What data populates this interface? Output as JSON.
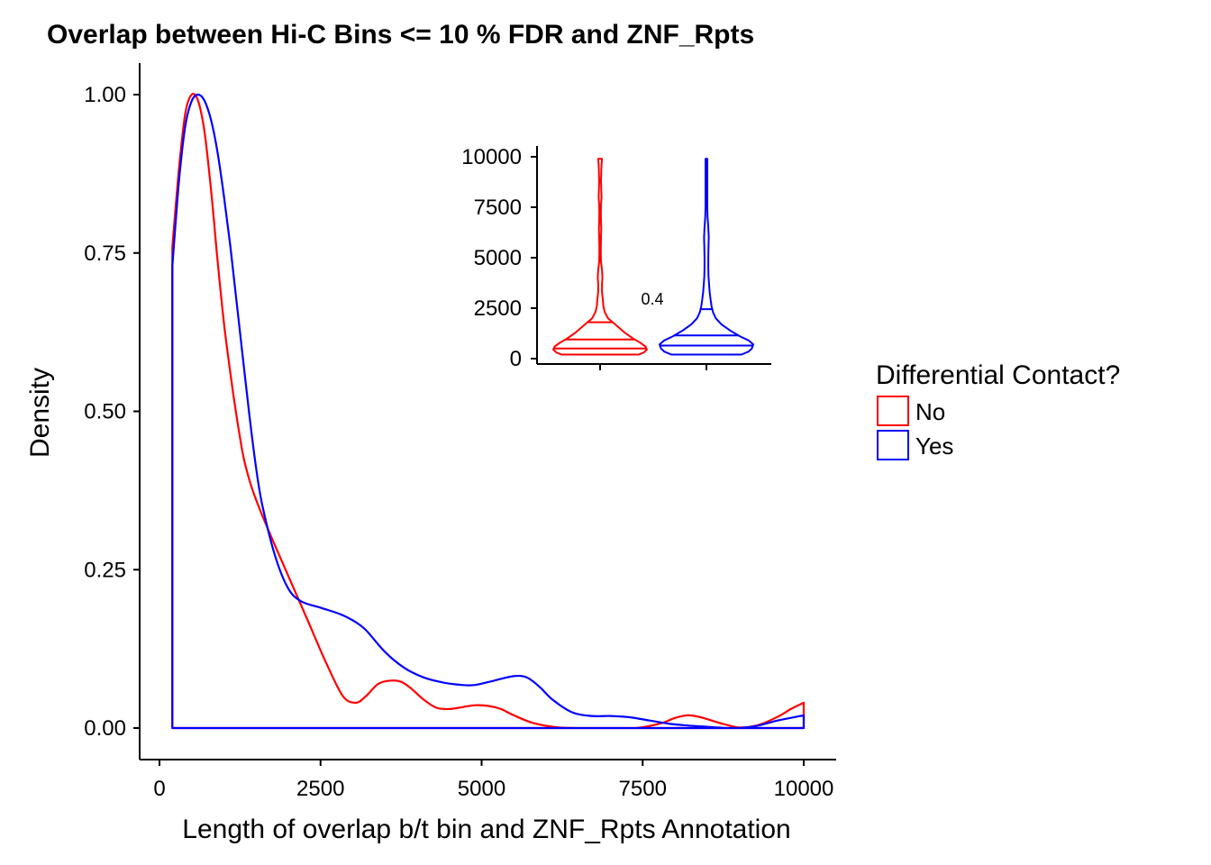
{
  "chart_data": [
    {
      "type": "area",
      "title": "Overlap between Hi-C Bins <= 10 % FDR and ZNF_Rpts",
      "xlabel": "Length of overlap b/t bin and ZNF_Rpts Annotation",
      "ylabel": "Density",
      "xlim": [
        0,
        10000
      ],
      "ylim": [
        0,
        1.0
      ],
      "x_ticks": [
        "0",
        "2500",
        "5000",
        "7500",
        "10000"
      ],
      "y_ticks": [
        "0.00",
        "0.25",
        "0.50",
        "0.75",
        "1.00"
      ],
      "grid": false,
      "legend": {
        "title": "Differential Contact?",
        "placement": "right",
        "entries": [
          "No",
          "Yes"
        ]
      },
      "series": [
        {
          "name": "No",
          "color": "#ff0000",
          "x": [
            200,
            300,
            400,
            500,
            600,
            700,
            800,
            900,
            1000,
            1100,
            1200,
            1300,
            1400,
            1500,
            1700,
            2000,
            2300,
            2600,
            2850,
            3050,
            3200,
            3400,
            3600,
            3750,
            3900,
            4100,
            4300,
            4500,
            4700,
            4900,
            5100,
            5300,
            5500,
            5800,
            6200,
            6600,
            7000,
            7400,
            7800,
            8000,
            8200,
            8400,
            8700,
            9000,
            9300,
            9600,
            9800,
            10000
          ],
          "y": [
            0.76,
            0.88,
            0.97,
            1.0,
            0.99,
            0.94,
            0.85,
            0.74,
            0.64,
            0.56,
            0.49,
            0.43,
            0.39,
            0.36,
            0.31,
            0.24,
            0.17,
            0.1,
            0.05,
            0.04,
            0.05,
            0.07,
            0.075,
            0.073,
            0.063,
            0.045,
            0.032,
            0.03,
            0.033,
            0.036,
            0.035,
            0.03,
            0.02,
            0.008,
            0.001,
            0.0,
            0.0,
            0.0,
            0.008,
            0.016,
            0.02,
            0.017,
            0.008,
            0.001,
            0.005,
            0.018,
            0.03,
            0.04
          ]
        },
        {
          "name": "Yes",
          "color": "#0000ff",
          "x": [
            200,
            300,
            400,
            500,
            600,
            700,
            800,
            900,
            1000,
            1100,
            1200,
            1300,
            1400,
            1500,
            1600,
            1800,
            2000,
            2200,
            2500,
            2800,
            3000,
            3200,
            3500,
            3800,
            4100,
            4400,
            4700,
            4900,
            5200,
            5500,
            5700,
            5900,
            6100,
            6400,
            6700,
            7000,
            7300,
            7600,
            7900,
            8200,
            8500,
            8800,
            9000,
            9300,
            9600,
            10000
          ],
          "y": [
            0.73,
            0.86,
            0.95,
            0.99,
            1.0,
            0.99,
            0.96,
            0.91,
            0.84,
            0.76,
            0.67,
            0.58,
            0.49,
            0.41,
            0.35,
            0.27,
            0.22,
            0.2,
            0.19,
            0.18,
            0.17,
            0.155,
            0.12,
            0.095,
            0.08,
            0.072,
            0.068,
            0.068,
            0.075,
            0.082,
            0.08,
            0.065,
            0.045,
            0.025,
            0.019,
            0.019,
            0.017,
            0.012,
            0.007,
            0.004,
            0.002,
            0.0,
            0.0,
            0.004,
            0.012,
            0.02
          ]
        }
      ]
    },
    {
      "type": "violin",
      "ylim": [
        0,
        10000
      ],
      "y_ticks": [
        "0",
        "2500",
        "5000",
        "7500",
        "10000"
      ],
      "annotation": "0.4",
      "series": [
        {
          "name": "No",
          "color": "#ff0000",
          "profile_y": [
            200,
            300,
            450,
            600,
            800,
            1000,
            1300,
            1700,
            2000,
            2300,
            2600,
            2900,
            3300,
            3700,
            4000,
            4400,
            4800,
            5200,
            5600,
            6000,
            6400,
            6800,
            7200,
            7600,
            8000,
            8400,
            8800,
            9200,
            9600,
            9900
          ],
          "profile_w": [
            0.82,
            0.93,
            1.0,
            0.97,
            0.85,
            0.7,
            0.52,
            0.32,
            0.17,
            0.1,
            0.07,
            0.06,
            0.04,
            0.04,
            0.05,
            0.04,
            0.02,
            0.015,
            0.015,
            0.02,
            0.025,
            0.02,
            0.015,
            0.02,
            0.03,
            0.025,
            0.02,
            0.025,
            0.03,
            0.04
          ],
          "quantiles": [
            500,
            950,
            1800
          ]
        },
        {
          "name": "Yes",
          "color": "#0000ff",
          "profile_y": [
            200,
            350,
            500,
            700,
            900,
            1100,
            1400,
            1700,
            2000,
            2300,
            2600,
            2900,
            3300,
            3700,
            4100,
            4500,
            5000,
            5500,
            6000,
            6500,
            7000,
            7500,
            8000,
            8500,
            9000,
            9500,
            9900
          ],
          "profile_w": [
            0.75,
            0.9,
            0.97,
            1.0,
            0.9,
            0.72,
            0.5,
            0.32,
            0.2,
            0.14,
            0.11,
            0.09,
            0.07,
            0.055,
            0.045,
            0.04,
            0.04,
            0.045,
            0.05,
            0.04,
            0.025,
            0.02,
            0.02,
            0.02,
            0.02,
            0.02,
            0.02
          ],
          "quantiles": [
            650,
            1150,
            2450
          ]
        }
      ]
    }
  ]
}
